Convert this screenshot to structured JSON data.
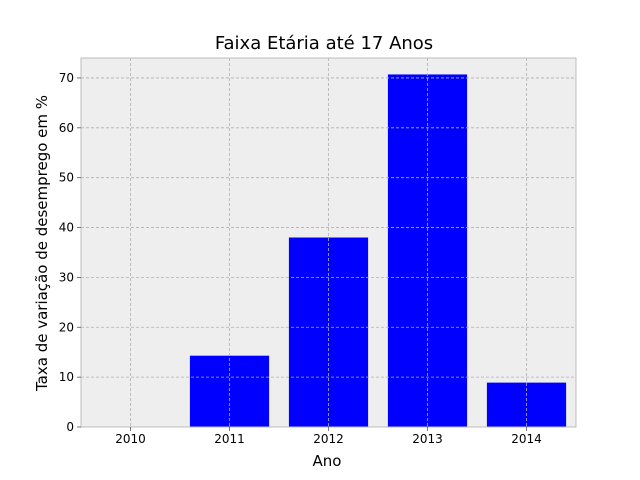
{
  "chart_data": {
    "type": "bar",
    "title": "Faixa Etária até 17 Anos",
    "xlabel": "Ano",
    "ylabel": "Taxa de variação de desemprego em %",
    "categories": [
      "2010",
      "2011",
      "2012",
      "2013",
      "2014"
    ],
    "values": [
      0,
      14.3,
      38.0,
      70.7,
      8.9
    ],
    "ylim": [
      0,
      74
    ],
    "yticks": [
      0,
      10,
      20,
      30,
      40,
      50,
      60,
      70
    ],
    "grid": true,
    "bar_color": "#0000ff",
    "axes_background": "#eeeeee",
    "axes_edge_color": "#bcbcbc"
  }
}
